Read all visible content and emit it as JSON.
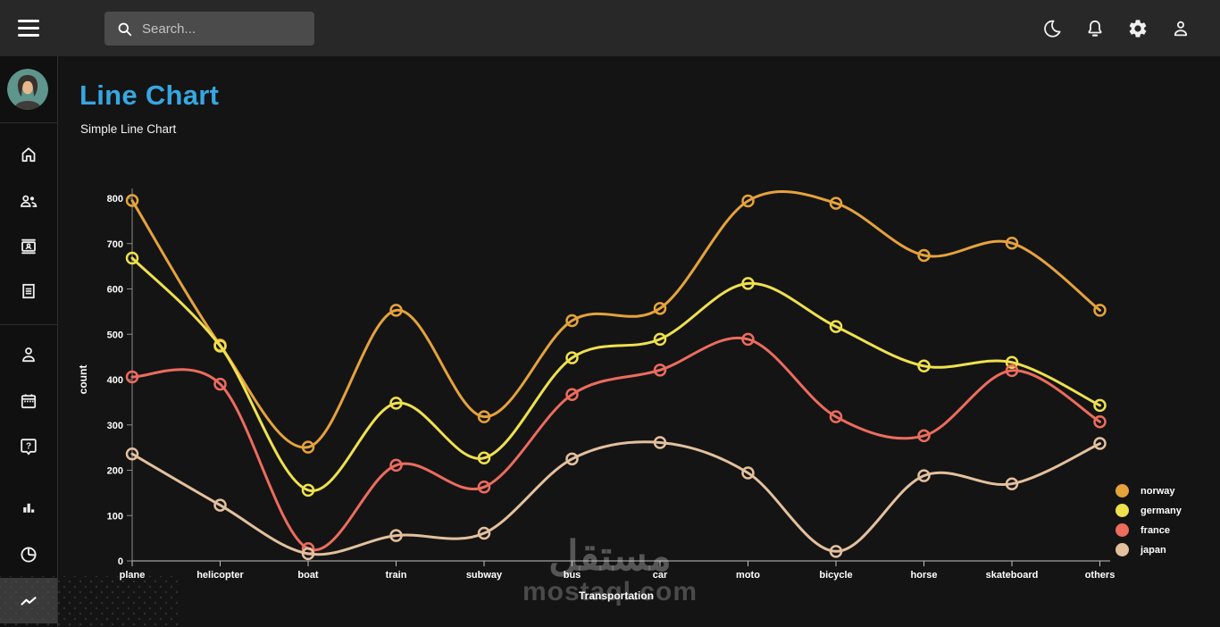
{
  "topbar": {
    "search_placeholder": "Search...",
    "icons": [
      "menu",
      "dark-mode-moon",
      "notifications-bell",
      "settings-gear",
      "account-person"
    ]
  },
  "sidebar": {
    "icons": [
      "home",
      "people",
      "contact-card",
      "receipt",
      "person",
      "calendar",
      "help",
      "bar-chart",
      "pie-chart",
      "line-chart"
    ],
    "active": "line-chart"
  },
  "header": {
    "title": "Line Chart",
    "subtitle": "Simple Line Chart",
    "accent_color": "#36A7E2"
  },
  "watermark": {
    "text": "مستقل",
    "domain": "mostaql.com"
  },
  "chart_data": {
    "type": "line",
    "title": "Simple Line Chart",
    "xlabel": "Transportation",
    "ylabel": "count",
    "categories": [
      "plane",
      "helicopter",
      "boat",
      "train",
      "subway",
      "bus",
      "car",
      "moto",
      "bicycle",
      "horse",
      "skateboard",
      "others"
    ],
    "series": [
      {
        "name": "norway",
        "color": "#E5A33C",
        "values": [
          795,
          476,
          251,
          553,
          318,
          530,
          557,
          794,
          789,
          674,
          701,
          553
        ]
      },
      {
        "name": "germany",
        "color": "#EFE14E",
        "values": [
          668,
          474,
          156,
          348,
          227,
          448,
          489,
          612,
          517,
          430,
          438,
          343
        ]
      },
      {
        "name": "france",
        "color": "#EC6C5E",
        "values": [
          406,
          390,
          27,
          211,
          163,
          367,
          421,
          489,
          318,
          276,
          420,
          307
        ]
      },
      {
        "name": "japan",
        "color": "#E3C09E",
        "values": [
          236,
          123,
          16,
          56,
          61,
          225,
          261,
          194,
          21,
          188,
          170,
          259
        ]
      }
    ],
    "ylim": [
      0,
      800
    ],
    "yticks": [
      0,
      100,
      200,
      300,
      400,
      500,
      600,
      700,
      800
    ],
    "grid": false,
    "smooth": true,
    "marker": "open-circle",
    "legend_position": "right-bottom"
  }
}
